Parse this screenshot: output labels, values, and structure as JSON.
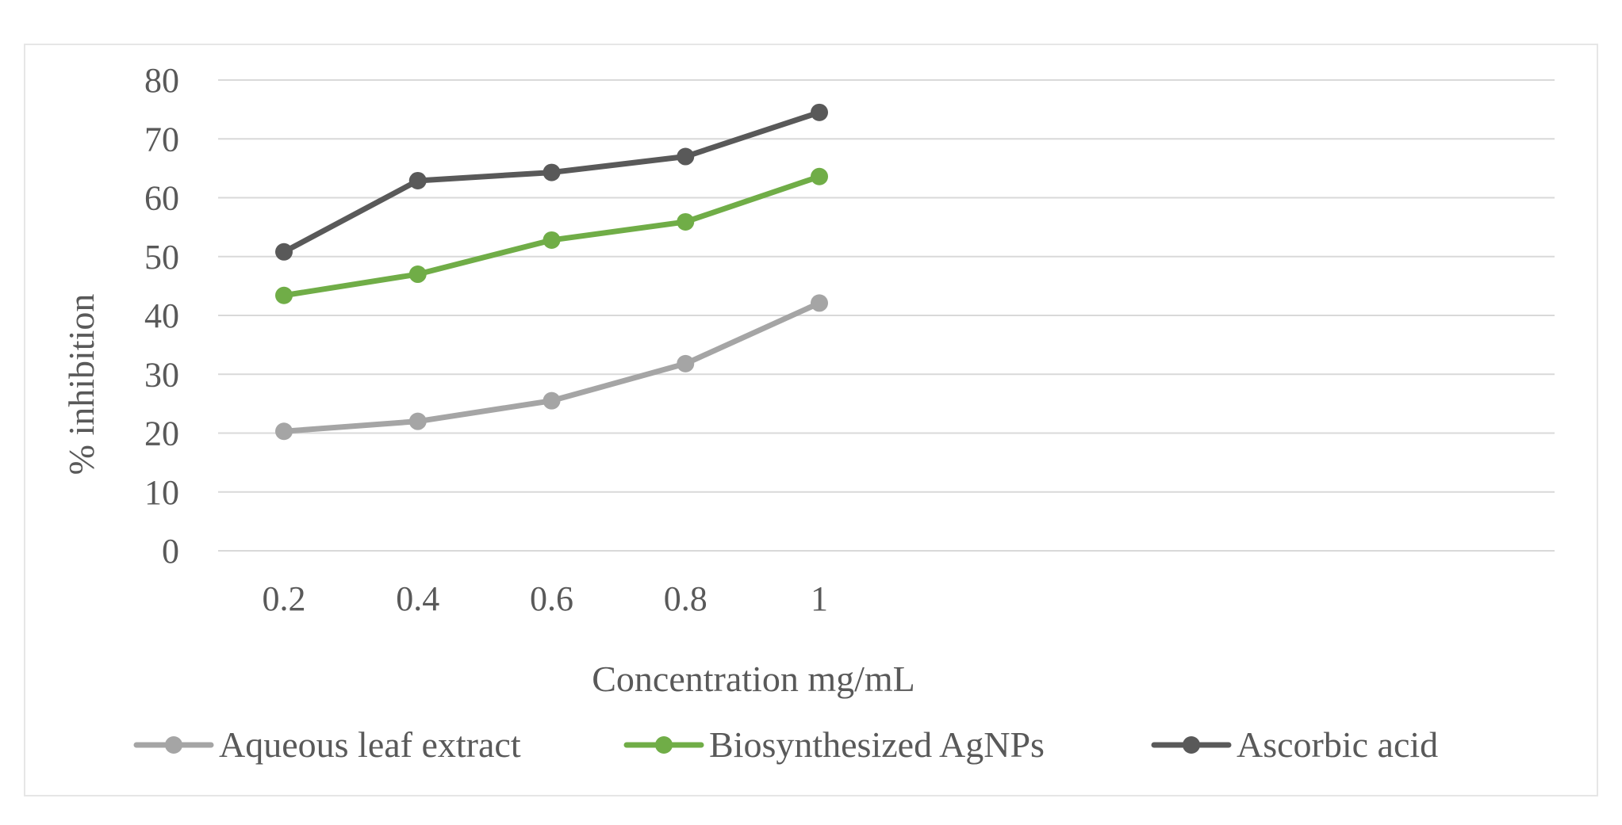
{
  "chart_data": {
    "type": "line",
    "title": "",
    "xlabel": "Concentration mg/mL",
    "ylabel": "% inhibition",
    "categories": [
      "0.2",
      "0.4",
      "0.6",
      "0.8",
      "1"
    ],
    "yticks": [
      "0",
      "10",
      "20",
      "30",
      "40",
      "50",
      "60",
      "70",
      "80"
    ],
    "ylim": [
      0,
      80
    ],
    "grid": true,
    "legend_position": "bottom",
    "series": [
      {
        "name": "Aqueous leaf extract",
        "color": "#a5a5a5",
        "values": [
          20.3,
          22.0,
          25.5,
          31.8,
          42.1
        ]
      },
      {
        "name": "Biosynthesized AgNPs",
        "color": "#70ad47",
        "values": [
          43.4,
          47.0,
          52.8,
          55.9,
          63.6
        ]
      },
      {
        "name": "Ascorbic acid",
        "color": "#595959",
        "values": [
          50.8,
          62.9,
          64.3,
          67.0,
          74.5
        ]
      }
    ]
  }
}
